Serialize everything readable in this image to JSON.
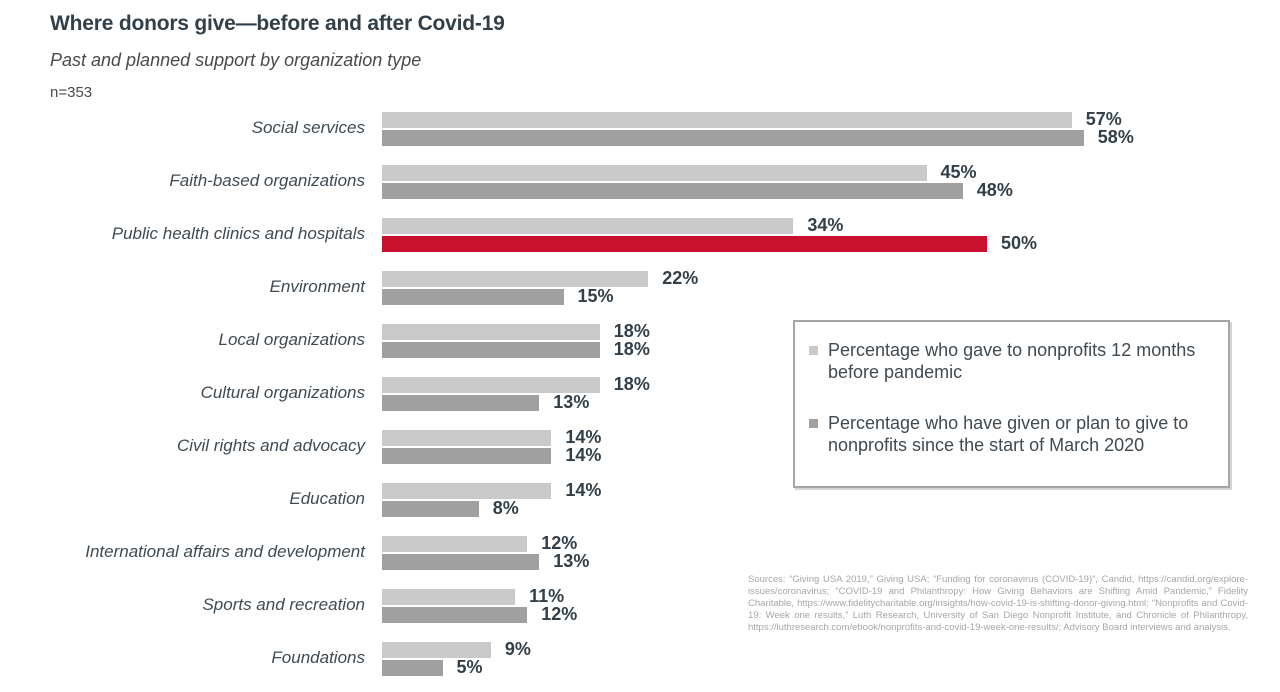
{
  "title": "Where donors give—before and after Covid-19",
  "subtitle": "Past and planned support by organization type",
  "sample_size": "n=353",
  "chart_data": {
    "type": "bar",
    "orientation": "horizontal",
    "value_suffix": "%",
    "xlim": [
      0,
      58
    ],
    "grid": false,
    "categories": [
      "Social services",
      "Faith-based organizations",
      "Public health clinics and hospitals",
      "Environment",
      "Local organizations",
      "Cultural organizations",
      "Civil rights and advocacy",
      "Education",
      "International affairs and development",
      "Sports and recreation",
      "Foundations"
    ],
    "series": [
      {
        "name": "Percentage who gave to nonprofits 12 months before pandemic",
        "color": "#c9c9c9",
        "values": [
          57,
          45,
          34,
          22,
          18,
          18,
          14,
          14,
          12,
          11,
          9
        ]
      },
      {
        "name": "Percentage who have given or plan to give to nonprofits since the start of March 2020",
        "color": "#a0a0a0",
        "values": [
          58,
          48,
          50,
          15,
          18,
          13,
          14,
          8,
          13,
          12,
          5
        ]
      }
    ],
    "highlight": {
      "category": "Public health clinics and hospitals",
      "category_index": 2,
      "series_index": 1,
      "color": "#c9102e"
    },
    "legend_position": "right"
  },
  "legend": {
    "items": [
      {
        "label": "Percentage who gave to nonprofits 12 months before pandemic",
        "color": "#c9c9c9"
      },
      {
        "label": "Percentage who have given or plan to give to nonprofits since the start of March 2020",
        "color": "#a0a0a0"
      }
    ]
  },
  "sources": "Sources: “Giving USA 2019,” Giving USA; “Funding for coronavirus (COVID-19)”, Candid, https://candid.org/explore-issues/coronavirus; “COVID-19 and Philanthropy: How Giving Behaviors are Shifting Amid Pandemic,” Fidelity Charitable, https://www.fidelitycharitable.org/insights/how-covid-19-is-shifting-donor-giving.html; “Nonprofits and Covid-19: Week one results,” Luth Research, University of San Diego Nonprofit Institute, and Chronicle of Philanthropy, https://luthresearch.com/ebook/nonprofits-and-covid-19-week-one-results/; Advisory Board interviews and analysis."
}
